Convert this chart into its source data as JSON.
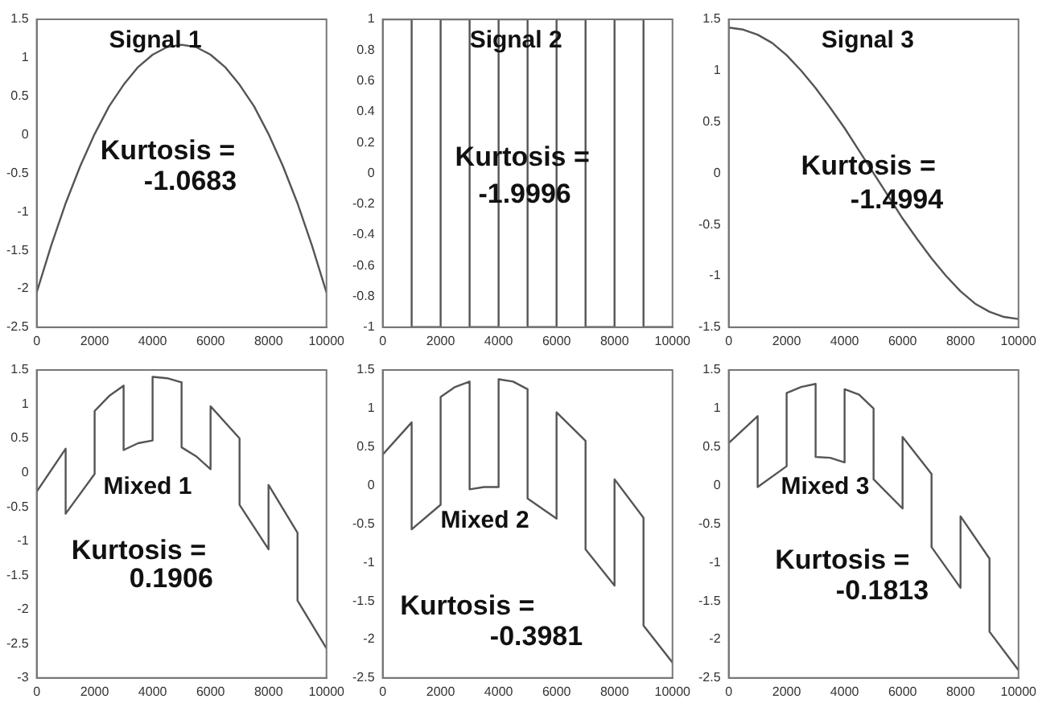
{
  "chart_data": [
    {
      "type": "line",
      "title": "Signal 1",
      "annotations": [
        "Kurtosis =",
        "-1.0683"
      ],
      "xlim": [
        0,
        10000
      ],
      "xticks": [
        0,
        2000,
        4000,
        6000,
        8000,
        10000
      ],
      "ylim": [
        -2.5,
        1.5
      ],
      "yticks": [
        -2.5,
        -2,
        -1.5,
        -1,
        -0.5,
        0,
        0.5,
        1,
        1.5
      ],
      "series": [
        {
          "color": "#555555",
          "x": [
            0,
            500,
            1000,
            1500,
            2000,
            2500,
            3000,
            3500,
            4000,
            4500,
            5000,
            5500,
            6000,
            6500,
            7000,
            7500,
            8000,
            8500,
            9000,
            9500,
            10000
          ],
          "values": [
            -2.05,
            -1.44,
            -0.89,
            -0.41,
            0.01,
            0.37,
            0.65,
            0.88,
            1.04,
            1.14,
            1.17,
            1.14,
            1.04,
            0.88,
            0.65,
            0.37,
            0.01,
            -0.41,
            -0.89,
            -1.44,
            -2.05
          ]
        }
      ]
    },
    {
      "type": "line",
      "title": "Signal 2",
      "annotations": [
        "Kurtosis =",
        "-1.9996"
      ],
      "xlim": [
        0,
        10000
      ],
      "xticks": [
        0,
        2000,
        4000,
        6000,
        8000,
        10000
      ],
      "ylim": [
        -1,
        1
      ],
      "yticks": [
        -1,
        -0.8,
        -0.6,
        -0.4,
        -0.2,
        0,
        0.2,
        0.4,
        0.6,
        0.8,
        1
      ],
      "series": [
        {
          "color": "#555555",
          "x": [
            0,
            1000,
            1000,
            2000,
            2000,
            3000,
            3000,
            4000,
            4000,
            5000,
            5000,
            6000,
            6000,
            7000,
            7000,
            8000,
            8000,
            9000,
            9000,
            10000
          ],
          "values": [
            1,
            1,
            -1,
            -1,
            1,
            1,
            -1,
            -1,
            1,
            1,
            -1,
            -1,
            1,
            1,
            -1,
            -1,
            1,
            1,
            -1,
            -1
          ]
        }
      ]
    },
    {
      "type": "line",
      "title": "Signal 3",
      "annotations": [
        "Kurtosis =",
        "-1.4994"
      ],
      "xlim": [
        0,
        10000
      ],
      "xticks": [
        0,
        2000,
        4000,
        6000,
        8000,
        10000
      ],
      "ylim": [
        -1.5,
        1.5
      ],
      "yticks": [
        -1.5,
        -1,
        -0.5,
        0,
        0.5,
        1,
        1.5
      ],
      "series": [
        {
          "color": "#555555",
          "x": [
            0,
            500,
            1000,
            1500,
            2000,
            2500,
            3000,
            3500,
            4000,
            4500,
            5000,
            5500,
            6000,
            6500,
            7000,
            7500,
            8000,
            8500,
            9000,
            9500,
            10000
          ],
          "values": [
            1.42,
            1.4,
            1.35,
            1.27,
            1.15,
            1.0,
            0.83,
            0.64,
            0.44,
            0.22,
            0,
            -0.22,
            -0.44,
            -0.64,
            -0.83,
            -1.0,
            -1.15,
            -1.27,
            -1.35,
            -1.4,
            -1.42
          ]
        }
      ]
    },
    {
      "type": "line",
      "title": "Mixed 1",
      "annotations": [
        "Kurtosis =",
        "0.1906"
      ],
      "xlim": [
        0,
        10000
      ],
      "xticks": [
        0,
        2000,
        4000,
        6000,
        8000,
        10000
      ],
      "ylim": [
        -3,
        1.5
      ],
      "yticks": [
        -3,
        -2.5,
        -2,
        -1.5,
        -1,
        -0.5,
        0,
        0.5,
        1,
        1.5
      ],
      "series": [
        {
          "color": "#555555",
          "x": [
            0,
            1000,
            1000,
            2000,
            2000,
            2500,
            3000,
            3000,
            3500,
            4000,
            4000,
            4500,
            5000,
            5000,
            5500,
            6000,
            6000,
            7000,
            7000,
            8000,
            8000,
            9000,
            9000,
            10000
          ],
          "values": [
            -0.28,
            0.35,
            -0.6,
            -0.02,
            0.9,
            1.12,
            1.27,
            0.33,
            0.43,
            0.47,
            1.4,
            1.38,
            1.32,
            0.37,
            0.24,
            0.05,
            0.97,
            0.5,
            -0.47,
            -1.12,
            -0.18,
            -0.88,
            -1.87,
            -2.57
          ]
        }
      ]
    },
    {
      "type": "line",
      "title": "Mixed 2",
      "annotations": [
        "Kurtosis =",
        "-0.3981"
      ],
      "xlim": [
        0,
        10000
      ],
      "xticks": [
        0,
        2000,
        4000,
        6000,
        8000,
        10000
      ],
      "ylim": [
        -2.5,
        1.5
      ],
      "yticks": [
        -2.5,
        -2,
        -1.5,
        -1,
        -0.5,
        0,
        0.5,
        1,
        1.5
      ],
      "series": [
        {
          "color": "#555555",
          "x": [
            0,
            1000,
            1000,
            2000,
            2000,
            2500,
            3000,
            3000,
            3500,
            4000,
            4000,
            4500,
            5000,
            5000,
            6000,
            6000,
            7000,
            7000,
            8000,
            8000,
            9000,
            9000,
            10000
          ],
          "values": [
            0.4,
            0.82,
            -0.57,
            -0.25,
            1.15,
            1.28,
            1.35,
            -0.05,
            -0.02,
            -0.02,
            1.38,
            1.35,
            1.25,
            -0.17,
            -0.43,
            0.95,
            0.58,
            -0.83,
            -1.3,
            0.08,
            -0.42,
            -1.82,
            -2.3
          ]
        }
      ]
    },
    {
      "type": "line",
      "title": "Mixed 3",
      "annotations": [
        "Kurtosis =",
        "-0.1813"
      ],
      "xlim": [
        0,
        10000
      ],
      "xticks": [
        0,
        2000,
        4000,
        6000,
        8000,
        10000
      ],
      "ylim": [
        -2.5,
        1.5
      ],
      "yticks": [
        -2.5,
        -2,
        -1.5,
        -1,
        -0.5,
        0,
        0.5,
        1,
        1.5
      ],
      "series": [
        {
          "color": "#555555",
          "x": [
            0,
            1000,
            1000,
            2000,
            2000,
            2500,
            3000,
            3000,
            3500,
            4000,
            4000,
            4500,
            5000,
            5000,
            6000,
            6000,
            7000,
            7000,
            8000,
            8000,
            9000,
            9000,
            10000
          ],
          "values": [
            0.55,
            0.9,
            -0.02,
            0.25,
            1.2,
            1.28,
            1.32,
            0.37,
            0.36,
            0.3,
            1.25,
            1.18,
            1.0,
            0.08,
            -0.3,
            0.63,
            0.15,
            -0.8,
            -1.33,
            -0.4,
            -0.95,
            -1.9,
            -2.4
          ]
        }
      ]
    }
  ]
}
